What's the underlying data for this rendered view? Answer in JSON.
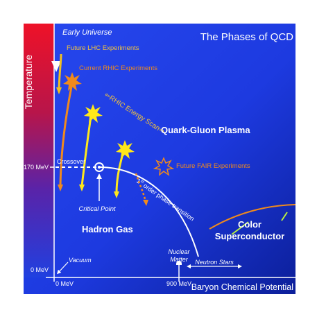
{
  "title": "The Phases of QCD",
  "axes": {
    "y_label": "Temperature",
    "x_label": "Baryon Chemical Potential",
    "y_ticks": [
      "~170 MeV",
      "0 MeV"
    ],
    "x_ticks": [
      "0 MeV",
      "900 MeV"
    ]
  },
  "labels": {
    "early_universe": "Early Universe",
    "future_lhc": "Future LHC Experiments",
    "current_rhic": "Current RHIC Experiments",
    "rhic_scan": "⇐RHIC Energy Scan⇒",
    "qgp": "Quark-Gluon Plasma",
    "future_fair": "Future FAIR Experiments",
    "crossover": "Crossover",
    "first_order_sup": "st",
    "first_order_pre": "1",
    "first_order_post": " order phase transition",
    "critical_point": "Critical Point",
    "hadron_gas": "Hadron Gas",
    "color_super_1": "Color",
    "color_super_2": "Superconductor",
    "nuclear_matter_1": "Nuclear",
    "nuclear_matter_2": "Matter",
    "vacuum": "Vacuum",
    "neutron_stars": "Neutron Stars"
  },
  "colors": {
    "background": "#1b3be0",
    "temperature_bar_top": "#e8102a",
    "temperature_bar_bottom": "#1e3fe0",
    "orange": "#f08a1c",
    "yellow": "#ffe81a",
    "light_green": "#b8f040",
    "text_white": "#ffffff"
  }
}
